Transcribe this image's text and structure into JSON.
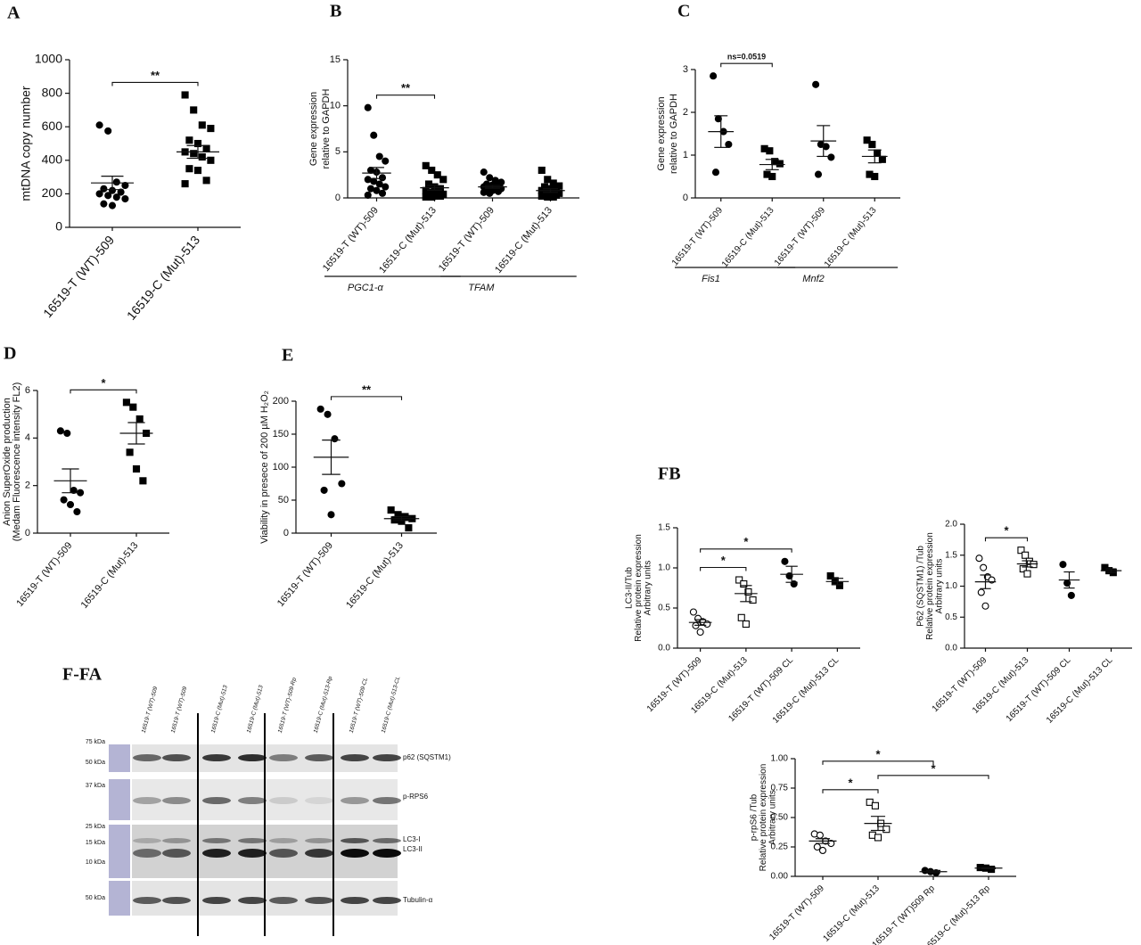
{
  "chart_data": [
    {
      "type": "dot",
      "panel": "A",
      "ylabel": [
        "mtDNA copy number"
      ],
      "categories": [
        "16519-T (WT)-509",
        "16519-C (Mut)-513"
      ],
      "markers": [
        "circle",
        "square"
      ],
      "filled": [
        true,
        true
      ],
      "points": [
        [
          610,
          575,
          270,
          250,
          230,
          220,
          210,
          200,
          190,
          180,
          170,
          140,
          130
        ],
        [
          790,
          700,
          610,
          590,
          520,
          500,
          470,
          450,
          440,
          420,
          400,
          350,
          340,
          280,
          260
        ]
      ],
      "means": [
        265,
        450
      ],
      "sems": [
        40,
        38
      ],
      "ylim": [
        0,
        1000
      ],
      "yticks": [
        0,
        200,
        400,
        600,
        800,
        1000
      ],
      "brackets": [
        {
          "from": 0,
          "to": 1,
          "label": "**"
        }
      ]
    },
    {
      "type": "dot",
      "panel": "B",
      "ylabel": [
        "Gene expression",
        "relative to GAPDH"
      ],
      "categories": [
        "16519-T (WT)-509",
        "16519-C (Mut)-513",
        "16519-T (WT)-509",
        "16519-C (Mut)-513"
      ],
      "groups": [
        "PGC1-α",
        "TFAM"
      ],
      "markers": [
        "circle",
        "square",
        "circle",
        "square"
      ],
      "filled": [
        true,
        true,
        true,
        true
      ],
      "points": [
        [
          9.8,
          6.8,
          4.5,
          4.0,
          3.0,
          2.8,
          2.2,
          2.0,
          1.8,
          1.5,
          1.2,
          1.0,
          0.8,
          0.5,
          0.3
        ],
        [
          3.5,
          3.0,
          2.5,
          2.0,
          1.5,
          1.2,
          1.0,
          0.8,
          0.6,
          0.5,
          0.4,
          0.3,
          0.2,
          0.2,
          0.1,
          0.1
        ],
        [
          2.8,
          2.2,
          1.9,
          1.7,
          1.5,
          1.4,
          1.3,
          1.2,
          1.1,
          1.0,
          1.0,
          0.9,
          0.8,
          0.7,
          0.6,
          0.5
        ],
        [
          3.0,
          2.0,
          1.6,
          1.3,
          1.2,
          1.0,
          0.9,
          0.8,
          0.7,
          0.6,
          0.5,
          0.4,
          0.3,
          0.3,
          0.2,
          0.1,
          0.1
        ]
      ],
      "means": [
        2.7,
        1.1,
        1.2,
        0.8
      ],
      "sems": [
        0.6,
        0.25,
        0.15,
        0.2
      ],
      "ylim": [
        0,
        15
      ],
      "yticks": [
        0,
        5,
        10,
        15
      ],
      "brackets": [
        {
          "from": 0,
          "to": 1,
          "label": "**"
        }
      ]
    },
    {
      "type": "dot",
      "panel": "C",
      "ylabel": [
        "Gene expression",
        "relative to GAPDH"
      ],
      "categories": [
        "16519-T (WT)-509",
        "16519-C (Mut)-513",
        "16519-T (WT)-509",
        "16519-C (Mut)-513"
      ],
      "groups": [
        "Fis1",
        "Mnf2"
      ],
      "markers": [
        "circle",
        "square",
        "circle",
        "square"
      ],
      "filled": [
        true,
        true,
        true,
        true
      ],
      "points": [
        [
          2.85,
          1.85,
          1.55,
          1.25,
          0.6
        ],
        [
          1.15,
          1.1,
          0.85,
          0.8,
          0.55,
          0.5
        ],
        [
          2.65,
          1.25,
          1.2,
          0.95,
          0.55
        ],
        [
          1.35,
          1.25,
          1.05,
          0.9,
          0.55,
          0.5
        ]
      ],
      "means": [
        1.55,
        0.78,
        1.33,
        0.97
      ],
      "sems": [
        0.37,
        0.12,
        0.36,
        0.15
      ],
      "ylim": [
        0,
        3
      ],
      "yticks": [
        0,
        1,
        2,
        3
      ],
      "brackets": [
        {
          "from": 0,
          "to": 1,
          "label": "ns=0.0519"
        }
      ]
    },
    {
      "type": "dot",
      "panel": "D",
      "ylabel": [
        "Anion SuperOxide production",
        "(Medam Fluorescence intensity FL2)"
      ],
      "categories": [
        "16519-T (WT)-509",
        "16519-C (Mut)-513"
      ],
      "markers": [
        "circle",
        "square"
      ],
      "filled": [
        true,
        true
      ],
      "points": [
        [
          4.3,
          4.2,
          1.8,
          1.7,
          1.4,
          1.2,
          0.9
        ],
        [
          5.5,
          5.3,
          4.8,
          4.2,
          3.4,
          2.7,
          2.2
        ]
      ],
      "means": [
        2.2,
        4.2
      ],
      "sems": [
        0.5,
        0.45
      ],
      "ylim": [
        0,
        6
      ],
      "yticks": [
        0,
        2,
        4,
        6
      ],
      "brackets": [
        {
          "from": 0,
          "to": 1,
          "label": "*"
        }
      ]
    },
    {
      "type": "dot",
      "panel": "E",
      "ylabel": [
        "Viability in presece of 200 µM H₂O₂"
      ],
      "categories": [
        "16519-T (WT)-509",
        "16519-C (Mut)-513"
      ],
      "markers": [
        "circle",
        "square"
      ],
      "filled": [
        true,
        true
      ],
      "points": [
        [
          188,
          180,
          143,
          75,
          65,
          28
        ],
        [
          35,
          28,
          25,
          22,
          20,
          18,
          8
        ]
      ],
      "means": [
        115,
        22
      ],
      "sems": [
        26,
        3
      ],
      "ylim": [
        0,
        200
      ],
      "yticks": [
        0,
        50,
        100,
        150,
        200
      ],
      "brackets": [
        {
          "from": 0,
          "to": 1,
          "label": "**"
        }
      ]
    },
    {
      "type": "dot",
      "panel": "FB",
      "ylabel": [
        "LC3-II/Tub",
        "Relative protein expression",
        "Arbitrary units"
      ],
      "categories": [
        "16519-T (WT)-509",
        "16519-C (Mut)-513",
        "16519-T (WT)-509 CL",
        "16519-C (Mut)-513 CL"
      ],
      "markers": [
        "circle",
        "square",
        "circle",
        "square"
      ],
      "filled": [
        false,
        false,
        true,
        true
      ],
      "points": [
        [
          0.45,
          0.37,
          0.33,
          0.3,
          0.28,
          0.2
        ],
        [
          0.85,
          0.8,
          0.7,
          0.6,
          0.38,
          0.3
        ],
        [
          1.08,
          0.9,
          0.8
        ],
        [
          0.9,
          0.84,
          0.78
        ]
      ],
      "means": [
        0.32,
        0.68,
        0.92,
        0.83
      ],
      "sems": [
        0.035,
        0.1,
        0.1,
        0.04
      ],
      "ylim": [
        0,
        1.5
      ],
      "yticks": [
        {
          "value": 0,
          "label": "0.0"
        },
        0.5,
        {
          "value": 1,
          "label": "1.0"
        },
        1.5
      ],
      "brackets": [
        {
          "from": 0,
          "to": 1,
          "label": "*"
        },
        {
          "from": 0,
          "to": 2,
          "label": "*"
        }
      ]
    },
    {
      "type": "dot",
      "ylabel": [
        "P62 (SQSTM1) /Tub",
        "Relative protein expression",
        "Arbitrary units"
      ],
      "categories": [
        "16519-T (WT)-509",
        "16519-C (Mut)-513",
        "16519-T (WT)-509 CL",
        "16519-C (Mut)-513 CL"
      ],
      "markers": [
        "circle",
        "square",
        "circle",
        "square"
      ],
      "filled": [
        false,
        false,
        true,
        true
      ],
      "points": [
        [
          1.45,
          1.3,
          1.15,
          1.1,
          0.9,
          0.68
        ],
        [
          1.58,
          1.5,
          1.4,
          1.35,
          1.28,
          1.2
        ],
        [
          1.35,
          1.05,
          0.85
        ],
        [
          1.3,
          1.25,
          1.22
        ]
      ],
      "means": [
        1.07,
        1.36,
        1.1,
        1.25
      ],
      "sems": [
        0.11,
        0.05,
        0.13,
        0.03
      ],
      "ylim": [
        0,
        2
      ],
      "yticks": [
        {
          "value": 0,
          "label": "0.0"
        },
        0.5,
        {
          "value": 1,
          "label": "1.0"
        },
        1.5,
        {
          "value": 2,
          "label": "2.0"
        }
      ],
      "brackets": [
        {
          "from": 0,
          "to": 1,
          "label": "*"
        }
      ]
    },
    {
      "type": "dot",
      "ylabel": [
        "p-rpS6 /Tub",
        "Relative protein expression",
        "Arbitrary units"
      ],
      "categories": [
        "16519-T (WT)-509",
        "16519-C (Mut)-513",
        "16519-T (WT)509 Rp",
        "16519-C (Mut)-513 Rp"
      ],
      "markers": [
        "circle",
        "square",
        "circle",
        "square"
      ],
      "filled": [
        false,
        false,
        true,
        true
      ],
      "points": [
        [
          0.36,
          0.35,
          0.3,
          0.28,
          0.25,
          0.22
        ],
        [
          0.63,
          0.6,
          0.45,
          0.4,
          0.35,
          0.33
        ],
        [
          0.05,
          0.04,
          0.03
        ],
        [
          0.075,
          0.07,
          0.06
        ]
      ],
      "means": [
        0.3,
        0.45,
        0.04,
        0.07
      ],
      "sems": [
        0.02,
        0.06,
        0.01,
        0.005
      ],
      "ylim": [
        0,
        1
      ],
      "yticks": [
        {
          "value": 0,
          "label": "0.00"
        },
        0.25,
        {
          "value": 0.5,
          "label": "0.50"
        },
        0.75,
        {
          "value": 1,
          "label": "1.00"
        }
      ],
      "brackets": [
        {
          "from": 0,
          "to": 1,
          "label": "*"
        },
        {
          "from": 1,
          "to": 3,
          "label": "*"
        },
        {
          "from": 0,
          "to": 2,
          "label": "*"
        }
      ]
    }
  ],
  "blot": {
    "panel": "F-FA",
    "lanes": [
      "16519-T (WT)-509",
      "16519-T (WT)-509",
      "16519-C (Mut)-513",
      "16519-C (Mut)-513",
      "16519-T (WT)-509-Rp",
      "16519-C (Mut)-513-Rp",
      "16519-T (WT)-509-CL",
      "16519-C (Mut)-513-CL"
    ],
    "ladder": [
      "75 kDa",
      "50 kDa",
      "37 kDa",
      "25 kDa",
      "15 kDa",
      "10 kDa",
      "50 kDa"
    ],
    "bands": [
      "p62 (SQSTM1)",
      "p-RPS6",
      "LC3-I",
      "LC3-II",
      "Tubulin-α"
    ]
  }
}
